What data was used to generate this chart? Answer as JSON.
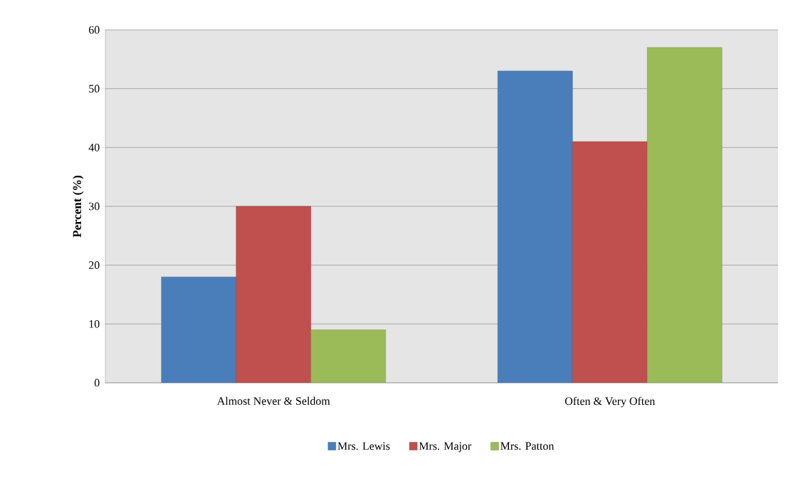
{
  "chart_data": {
    "type": "bar",
    "ylabel": "Percent (%)",
    "categories": [
      "Almost Never & Seldom",
      "Often & Very Often"
    ],
    "series": [
      {
        "name": "Mrs. Lewis",
        "color": "#4a7ebb",
        "values": [
          18,
          53
        ]
      },
      {
        "name": "Mrs. Major",
        "color": "#c0504d",
        "values": [
          30,
          41
        ]
      },
      {
        "name": "Mrs. Patton",
        "color": "#9bbb59",
        "values": [
          9,
          57
        ]
      }
    ],
    "ylim": [
      0,
      60
    ],
    "yticks": [
      0,
      10,
      20,
      30,
      40,
      50,
      60
    ],
    "grid": "y",
    "legend": "bottom"
  }
}
